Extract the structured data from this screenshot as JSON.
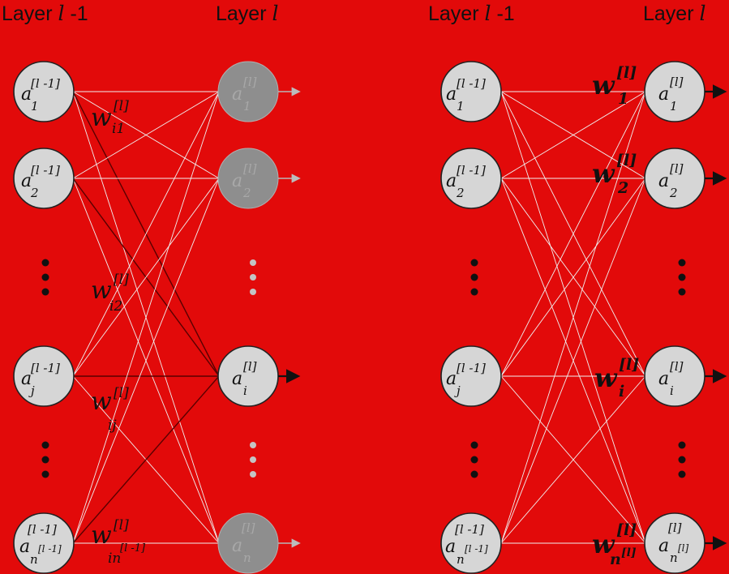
{
  "headers": {
    "left_prev_word": "Layer",
    "left_prev_var": "l",
    "left_prev_suffix": " -1",
    "left_cur_word": "Layer",
    "left_cur_var": "l",
    "right_prev_word": "Layer",
    "right_prev_var": "l",
    "right_prev_suffix": " -1",
    "right_cur_word": "Layer",
    "right_cur_var": "l"
  },
  "node_labels": {
    "a": "a",
    "prev_sup": "[l -1]",
    "cur_sup": "[l]",
    "sub_1": "1",
    "sub_2": "2",
    "sub_i": "i",
    "sub_j": "j",
    "sub_n": "n",
    "sub_n_prev_super": "[l -1]",
    "sub_n_cur_super": "[l]"
  },
  "weights_left": {
    "w": "w",
    "sup": "[l]",
    "sub_1": "i1",
    "sub_2": "i2",
    "sub_j": "ij",
    "sub_n": "in",
    "sub_n_super": "[l -1]"
  },
  "weights_right": {
    "w": "w",
    "sup": "[l]",
    "sub_1": "1",
    "sub_2": "2",
    "sub_i": "i",
    "sub_n": "n",
    "sub_n_super": "[l]"
  }
}
